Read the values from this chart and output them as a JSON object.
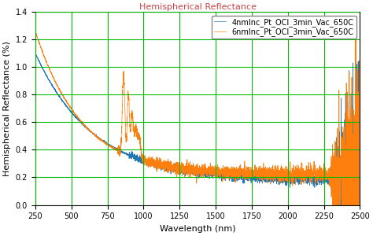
{
  "title": "Hemispherical Reflectance",
  "xlabel": "Wavelength (nm)",
  "ylabel": "Hemispherical Reflectance (%)",
  "xlim": [
    250,
    2500
  ],
  "ylim": [
    0.0,
    1.4
  ],
  "yticks": [
    0.0,
    0.2,
    0.4,
    0.6,
    0.8,
    1.0,
    1.2,
    1.4
  ],
  "xticks": [
    250,
    500,
    750,
    1000,
    1250,
    1500,
    1750,
    2000,
    2250,
    2500
  ],
  "legend_labels": [
    "4nmInc_Pt_OCI_3min_Vac_650C",
    "6nmInc_Pt_OCI_3min_Vac_650C"
  ],
  "blue_color": "#1f77b4",
  "orange_color": "#ff7f0e",
  "grid_color": "#00bb00",
  "background_color": "#ffffff",
  "title_color": "#cc4444",
  "title_fontsize": 8,
  "axis_fontsize": 8,
  "legend_fontsize": 7,
  "tick_fontsize": 7
}
